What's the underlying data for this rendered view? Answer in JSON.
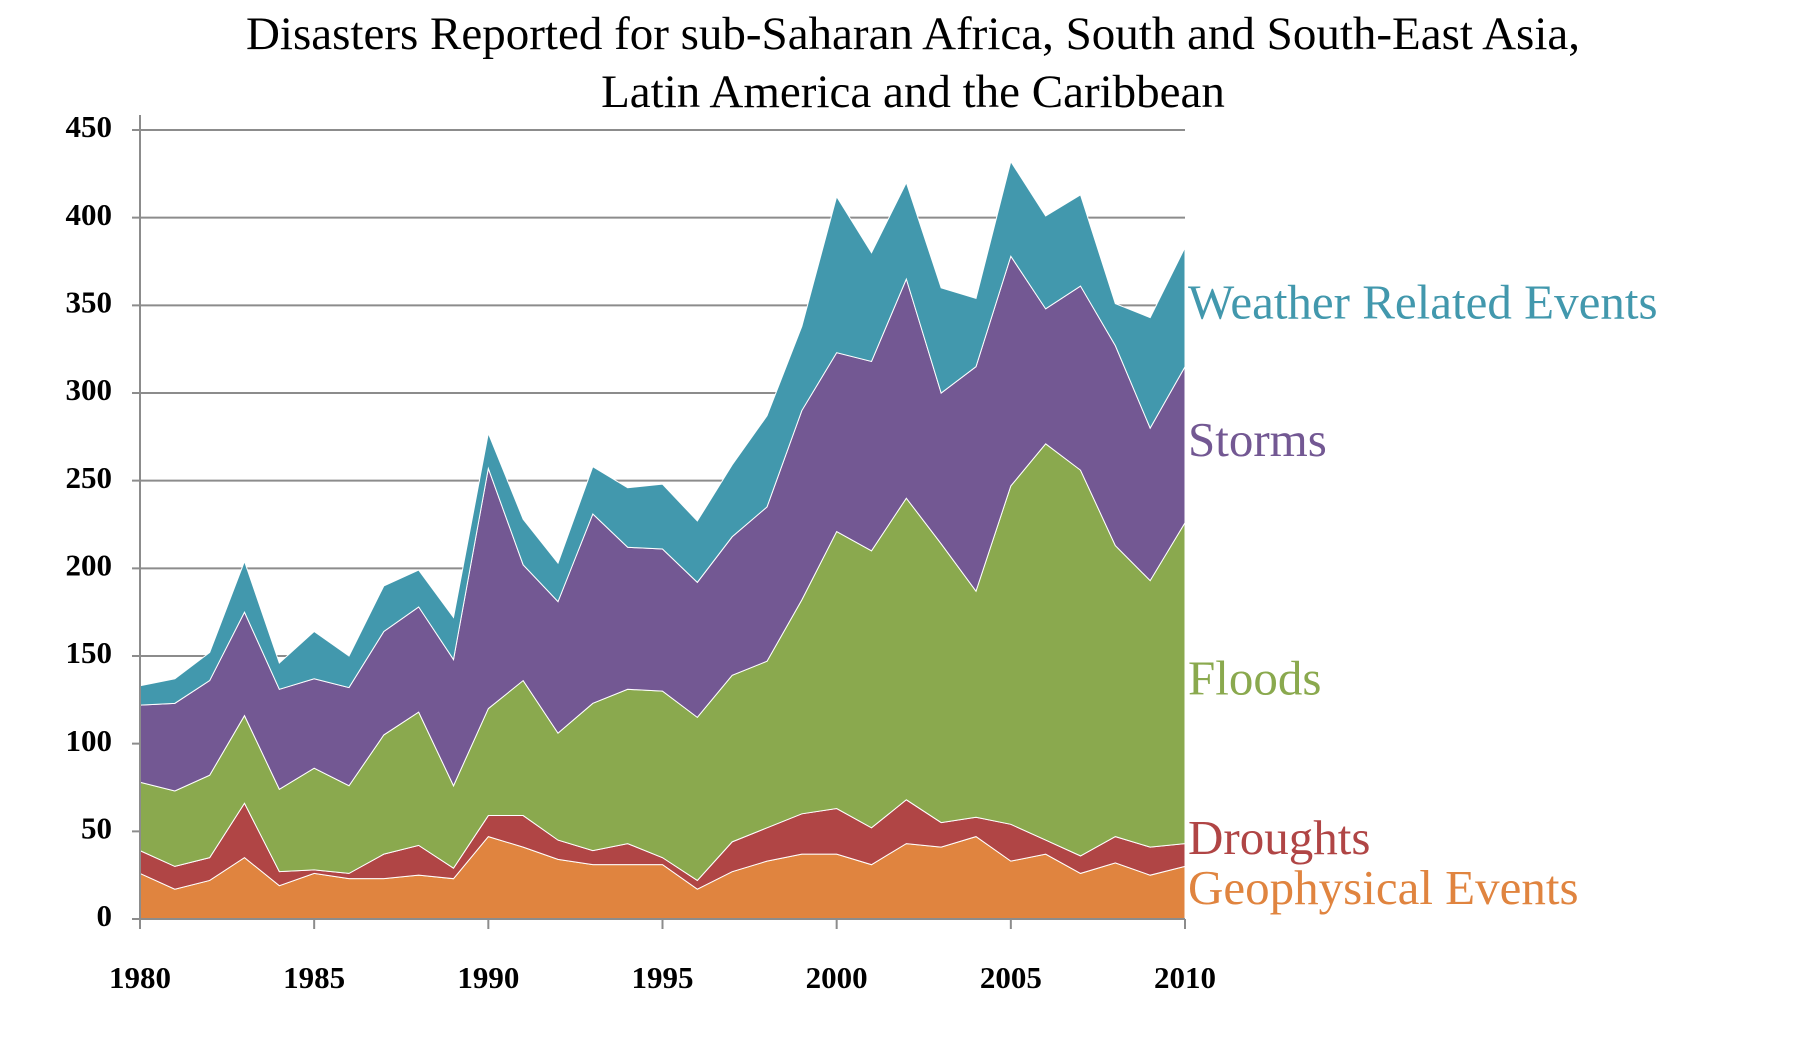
{
  "chart_data": {
    "type": "stacked_area",
    "title": "Disasters Reported for sub-Saharan Africa, South and South-East Asia,",
    "subtitle": "Latin America and the Caribbean",
    "x": [
      1980,
      1981,
      1982,
      1983,
      1984,
      1985,
      1986,
      1987,
      1988,
      1989,
      1990,
      1991,
      1992,
      1993,
      1994,
      1995,
      1996,
      1997,
      1998,
      1999,
      2000,
      2001,
      2002,
      2003,
      2004,
      2005,
      2006,
      2007,
      2008,
      2009,
      2010
    ],
    "series": [
      {
        "name": "Geophysical Events",
        "color": "#e0843f",
        "values": [
          26,
          17,
          22,
          35,
          19,
          26,
          23,
          23,
          25,
          23,
          47,
          41,
          34,
          31,
          31,
          31,
          17,
          27,
          33,
          37,
          37,
          31,
          43,
          41,
          47,
          33,
          37,
          26,
          32,
          25,
          30
        ]
      },
      {
        "name": "Droughts",
        "color": "#b04545",
        "values": [
          13,
          13,
          13,
          31,
          8,
          2,
          3,
          14,
          17,
          6,
          12,
          18,
          11,
          8,
          12,
          4,
          5,
          17,
          19,
          23,
          26,
          21,
          25,
          14,
          11,
          21,
          8,
          10,
          15,
          16,
          13
        ]
      },
      {
        "name": "Floods",
        "color": "#8aa94e",
        "values": [
          39,
          43,
          47,
          50,
          47,
          58,
          50,
          68,
          76,
          47,
          61,
          77,
          61,
          84,
          88,
          95,
          93,
          95,
          95,
          122,
          158,
          158,
          172,
          159,
          129,
          193,
          226,
          220,
          166,
          152,
          183
        ]
      },
      {
        "name": "Storms",
        "color": "#735893",
        "values": [
          44,
          50,
          54,
          59,
          57,
          51,
          56,
          59,
          60,
          72,
          137,
          66,
          75,
          108,
          81,
          81,
          77,
          79,
          88,
          108,
          102,
          108,
          125,
          86,
          128,
          131,
          77,
          105,
          114,
          87,
          89
        ]
      },
      {
        "name": "Weather Related Events",
        "color": "#4298ad",
        "values": [
          11,
          14,
          16,
          29,
          15,
          27,
          18,
          26,
          21,
          24,
          20,
          26,
          22,
          27,
          34,
          37,
          35,
          41,
          52,
          48,
          89,
          62,
          55,
          60,
          39,
          54,
          53,
          52,
          24,
          63,
          68
        ]
      }
    ],
    "xlim": [
      1980,
      2010
    ],
    "xticks": [
      1980,
      1985,
      1990,
      1995,
      2000,
      2005,
      2010
    ],
    "ylim": [
      0,
      450
    ],
    "yticks": [
      0,
      50,
      100,
      150,
      200,
      250,
      300,
      350,
      400,
      450
    ],
    "grid": true
  }
}
